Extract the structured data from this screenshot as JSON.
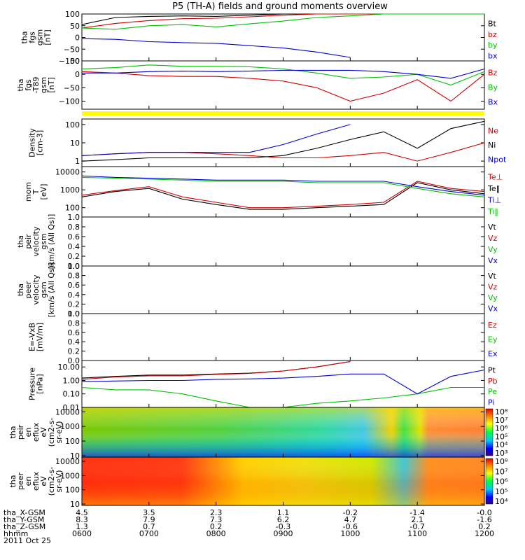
{
  "title": "P5 (TH-A) fields and ground moments overview",
  "chart_data": [
    {
      "type": "line",
      "panel": "fgs",
      "ylabel": [
        "tha",
        "fgs",
        "gsm",
        "[nT]"
      ],
      "ylim": [
        -100,
        100
      ],
      "yticks": [
        "100",
        "50",
        "0",
        "−50",
        "−100"
      ],
      "legend": [
        "Bt",
        "bz",
        "by",
        "bx"
      ],
      "x": [
        "06:00",
        "06:30",
        "07:00",
        "07:30",
        "08:00",
        "08:30",
        "09:00",
        "09:30",
        "10:00",
        "10:30",
        "11:00",
        "11:30",
        "12:00"
      ],
      "series": [
        {
          "name": "Bt",
          "color": "#000000",
          "values": [
            55,
            85,
            90,
            92,
            90,
            95,
            100,
            100,
            100,
            100,
            100,
            100,
            100
          ]
        },
        {
          "name": "bz",
          "color": "#d00000",
          "values": [
            40,
            60,
            72,
            80,
            82,
            88,
            95,
            100,
            100,
            100,
            100,
            100,
            100
          ]
        },
        {
          "name": "by",
          "color": "#00c000",
          "values": [
            40,
            35,
            50,
            55,
            45,
            58,
            70,
            85,
            92,
            100,
            100,
            100,
            100
          ]
        },
        {
          "name": "bx",
          "color": "#0000d0",
          "values": [
            -5,
            -8,
            -18,
            -22,
            -25,
            -35,
            -45,
            -62,
            -85,
            null,
            null,
            null,
            null
          ]
        }
      ]
    },
    {
      "type": "line",
      "panel": "fgs-t89",
      "ylabel": [
        "tha",
        "fgs",
        "-T89",
        "gsm",
        "[nT]"
      ],
      "ylim": [
        -130,
        50
      ],
      "yticks": [
        "50",
        "0",
        "−50",
        "−100"
      ],
      "legend": [
        "Bz",
        "By",
        "Bx"
      ],
      "x": [
        "06:00",
        "06:30",
        "07:00",
        "07:30",
        "08:00",
        "08:30",
        "09:00",
        "09:30",
        "10:00",
        "10:30",
        "11:00",
        "11:30",
        "12:00"
      ],
      "series": [
        {
          "name": "Bz",
          "color": "#d00000",
          "values": [
            10,
            5,
            -5,
            -8,
            -8,
            -15,
            -25,
            -50,
            -100,
            -70,
            -20,
            -100,
            0
          ]
        },
        {
          "name": "By",
          "color": "#00c000",
          "values": [
            20,
            25,
            35,
            30,
            30,
            28,
            20,
            5,
            -15,
            -10,
            0,
            -40,
            10
          ]
        },
        {
          "name": "Bx",
          "color": "#0000d0",
          "values": [
            5,
            5,
            10,
            12,
            10,
            12,
            15,
            15,
            15,
            10,
            0,
            -15,
            20
          ]
        }
      ]
    },
    {
      "type": "line",
      "panel": "density",
      "ylabel": [
        "Density",
        "[cm-3]"
      ],
      "ylim": [
        0.5,
        200
      ],
      "yticks": [
        "100",
        "10",
        "1"
      ],
      "legend": [
        "Ne",
        "Ni",
        "Npot"
      ],
      "x": [
        "06:00",
        "06:30",
        "07:00",
        "07:30",
        "08:00",
        "08:30",
        "09:00",
        "09:30",
        "10:00",
        "10:30",
        "11:00",
        "11:30",
        "12:00"
      ],
      "series": [
        {
          "name": "Ne",
          "color": "#d00000",
          "values": [
            2,
            2.5,
            3,
            3,
            2.5,
            2,
            1.5,
            1.5,
            2,
            3,
            1,
            3,
            10
          ]
        },
        {
          "name": "Ni",
          "color": "#000000",
          "values": [
            1,
            1.2,
            1.5,
            1.5,
            1.5,
            1.5,
            2,
            5,
            15,
            40,
            5,
            60,
            150
          ]
        },
        {
          "name": "Npot",
          "color": "#0000d0",
          "values": [
            2,
            2.5,
            3,
            3,
            3,
            3,
            8,
            30,
            100,
            null,
            null,
            null,
            null
          ]
        }
      ]
    },
    {
      "type": "line",
      "panel": "temperature",
      "ylabel": [
        "mom",
        "T",
        "[eV]"
      ],
      "ylim": [
        30,
        20000
      ],
      "yticks": [
        "10000",
        "1000",
        "100"
      ],
      "legend": [
        "Te⊥",
        "Te‖",
        "Ti⊥",
        "Ti‖"
      ],
      "x": [
        "06:00",
        "06:30",
        "07:00",
        "07:30",
        "08:00",
        "08:30",
        "09:00",
        "09:30",
        "10:00",
        "10:30",
        "11:00",
        "11:30",
        "12:00"
      ],
      "series": [
        {
          "name": "Te⊥",
          "color": "#d00000",
          "values": [
            500,
            900,
            1500,
            400,
            200,
            100,
            100,
            120,
            150,
            200,
            3000,
            1200,
            800
          ]
        },
        {
          "name": "Te‖",
          "color": "#000000",
          "values": [
            400,
            800,
            1200,
            300,
            150,
            80,
            80,
            100,
            120,
            150,
            2500,
            1000,
            600
          ]
        },
        {
          "name": "Ti⊥",
          "color": "#0000d0",
          "values": [
            6000,
            5000,
            4500,
            4000,
            3500,
            3500,
            3500,
            3000,
            3000,
            3000,
            1500,
            800,
            500
          ]
        },
        {
          "name": "Ti‖",
          "color": "#00c000",
          "values": [
            5000,
            4500,
            4000,
            3500,
            3000,
            3000,
            3000,
            2500,
            2500,
            2500,
            1200,
            600,
            400
          ]
        }
      ]
    },
    {
      "type": "line",
      "panel": "peir-velocity",
      "ylabel": [
        "tha",
        "peir",
        "velocity",
        "gsm",
        "[km/s (All Qs)]"
      ],
      "ylim": [
        0,
        1
      ],
      "yticks": [
        "1.0",
        "0.8",
        "0.6",
        "0.4",
        "0.2",
        "0.0"
      ],
      "legend": [
        "Vt",
        "Vz",
        "Vy",
        "Vx"
      ],
      "series": []
    },
    {
      "type": "line",
      "panel": "peer-velocity",
      "ylabel": [
        "tha",
        "peer",
        "velocity",
        "gsm",
        "[km/s (All Qs)]"
      ],
      "ylim": [
        0,
        1
      ],
      "yticks": [
        "1.0",
        "0.8",
        "0.6",
        "0.4",
        "0.2",
        "0.0"
      ],
      "legend": [
        "Vt",
        "Vz",
        "Vy",
        "Vx"
      ],
      "series": []
    },
    {
      "type": "line",
      "panel": "e-vxb",
      "ylabel": [
        "E=-VxB",
        "[mV/m]"
      ],
      "ylim": [
        0,
        1
      ],
      "yticks": [
        "1.0",
        "0.8",
        "0.6",
        "0.4",
        "0.2",
        "0.0"
      ],
      "legend": [
        "Ez",
        "Ey",
        "Ex"
      ],
      "series": []
    },
    {
      "type": "line",
      "panel": "pressure",
      "ylabel": [
        "Pressure",
        "[nPa]"
      ],
      "ylim": [
        0.01,
        30
      ],
      "yticks": [
        "10.00",
        "1.00",
        "0.10",
        "0.01"
      ],
      "legend": [
        "Pt",
        "Pb",
        "Pe",
        "Pi"
      ],
      "x": [
        "06:00",
        "06:30",
        "07:00",
        "07:30",
        "08:00",
        "08:30",
        "09:00",
        "09:30",
        "10:00",
        "10:30",
        "11:00",
        "11:30",
        "12:00"
      ],
      "series": [
        {
          "name": "Pt",
          "color": "#000000",
          "values": [
            1.5,
            2,
            2.5,
            2.5,
            3,
            3.5,
            5,
            10,
            25,
            null,
            null,
            null,
            null
          ]
        },
        {
          "name": "Pb",
          "color": "#d00000",
          "values": [
            1.2,
            1.8,
            2.2,
            2.2,
            2.8,
            3.3,
            5,
            10,
            25,
            null,
            null,
            null,
            null
          ]
        },
        {
          "name": "Pe",
          "color": "#00c000",
          "values": [
            0.3,
            0.2,
            0.2,
            0.1,
            0.03,
            0.01,
            0.01,
            0.02,
            0.03,
            0.05,
            0.1,
            0.3,
            0.3
          ]
        },
        {
          "name": "Pi",
          "color": "#0000d0",
          "values": [
            0.8,
            0.9,
            1,
            1,
            1.2,
            1.3,
            1.5,
            2,
            3,
            3,
            0.1,
            2,
            6
          ]
        }
      ]
    },
    {
      "type": "heatmap",
      "panel": "peir-en-eflux",
      "ylabel": [
        "tha",
        "peir",
        "en",
        "eflux",
        "eV",
        "(cm2-s-",
        "sr-eV)"
      ],
      "ylim": [
        8,
        20000
      ],
      "yticks": [
        "10000",
        "1000",
        "100",
        "10"
      ],
      "colorbar_ticks": [
        "10⁸",
        "10⁷",
        "10⁶",
        "10⁵",
        "10⁴",
        "10³"
      ]
    },
    {
      "type": "heatmap",
      "panel": "peer-en-eflux",
      "ylabel": [
        "tha",
        "peer",
        "en",
        "eflux",
        "eV",
        "(cm2-s-",
        "sr-eV)"
      ],
      "ylim": [
        8,
        20000
      ],
      "yticks": [
        "10000",
        "1000",
        "100",
        "10"
      ],
      "colorbar_ticks": [
        "10⁸",
        "10⁷",
        "10⁶",
        "10⁵",
        "10⁴"
      ]
    }
  ],
  "xaxis": {
    "rows": [
      {
        "label": "tha_X-GSM",
        "values": [
          "4.5",
          "3.5",
          "2.3",
          "1.1",
          "-0.2",
          "-1.4",
          "-0.0"
        ]
      },
      {
        "label": "tha_Y-GSM",
        "values": [
          "8.3",
          "7.9",
          "7.3",
          "6.2",
          "4.7",
          "2.1",
          "-1.6"
        ]
      },
      {
        "label": "tha_Z-GSM",
        "values": [
          "1.3",
          "0.7",
          "0.2",
          "-0.3",
          "-0.6",
          "-0.7",
          "0.2"
        ]
      },
      {
        "label": "hhmm",
        "values": [
          "0600",
          "0700",
          "0800",
          "0900",
          "1000",
          "1100",
          "1200"
        ]
      }
    ],
    "date": "2011 Oct 25"
  }
}
